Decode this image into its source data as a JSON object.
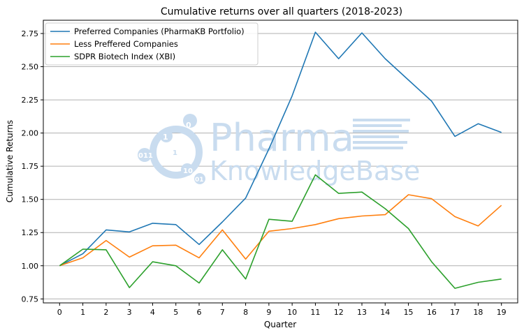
{
  "chart_data": {
    "type": "line",
    "title": "Cumulative returns over all quarters (2018-2023)",
    "xlabel": "Quarter",
    "ylabel": "Cumulative Returns",
    "x": [
      0,
      1,
      2,
      3,
      4,
      5,
      6,
      7,
      8,
      9,
      10,
      11,
      12,
      13,
      14,
      15,
      16,
      17,
      18,
      19
    ],
    "ylim": [
      0.72,
      2.85
    ],
    "yticks": [
      "0.75",
      "1.00",
      "1.25",
      "1.50",
      "1.75",
      "2.00",
      "2.25",
      "2.50",
      "2.75"
    ],
    "ytick_values": [
      0.75,
      1.0,
      1.25,
      1.5,
      1.75,
      2.0,
      2.25,
      2.5,
      2.75
    ],
    "grid": "horizontal",
    "legend_position": "top-left",
    "series": [
      {
        "name": "Preferred Companies (PharmaKB Portfolio)",
        "color": "#1f77b4",
        "values": [
          1.0,
          1.09,
          1.27,
          1.255,
          1.32,
          1.31,
          1.16,
          1.33,
          1.51,
          1.88,
          2.28,
          2.76,
          2.56,
          2.755,
          2.56,
          2.4,
          2.24,
          1.975,
          2.07,
          2.005
        ]
      },
      {
        "name": "Less Preffered Companies",
        "color": "#ff7f0e",
        "values": [
          1.0,
          1.06,
          1.19,
          1.065,
          1.15,
          1.155,
          1.06,
          1.27,
          1.05,
          1.26,
          1.28,
          1.31,
          1.355,
          1.375,
          1.385,
          1.535,
          1.505,
          1.37,
          1.3,
          1.455
        ]
      },
      {
        "name": "SDPR Biotech Index (XBI)",
        "color": "#2ca02c",
        "values": [
          1.0,
          1.125,
          1.12,
          0.835,
          1.03,
          1.0,
          0.87,
          1.12,
          0.9,
          1.35,
          1.335,
          1.685,
          1.545,
          1.555,
          1.43,
          1.28,
          1.03,
          0.83,
          0.875,
          0.9
        ]
      }
    ]
  },
  "watermark": {
    "line1": "Pharma",
    "line2": "KnowledgeBase",
    "color": "#c9dcef",
    "bits": [
      "0",
      "1",
      "10",
      "011",
      "01",
      "1"
    ]
  }
}
